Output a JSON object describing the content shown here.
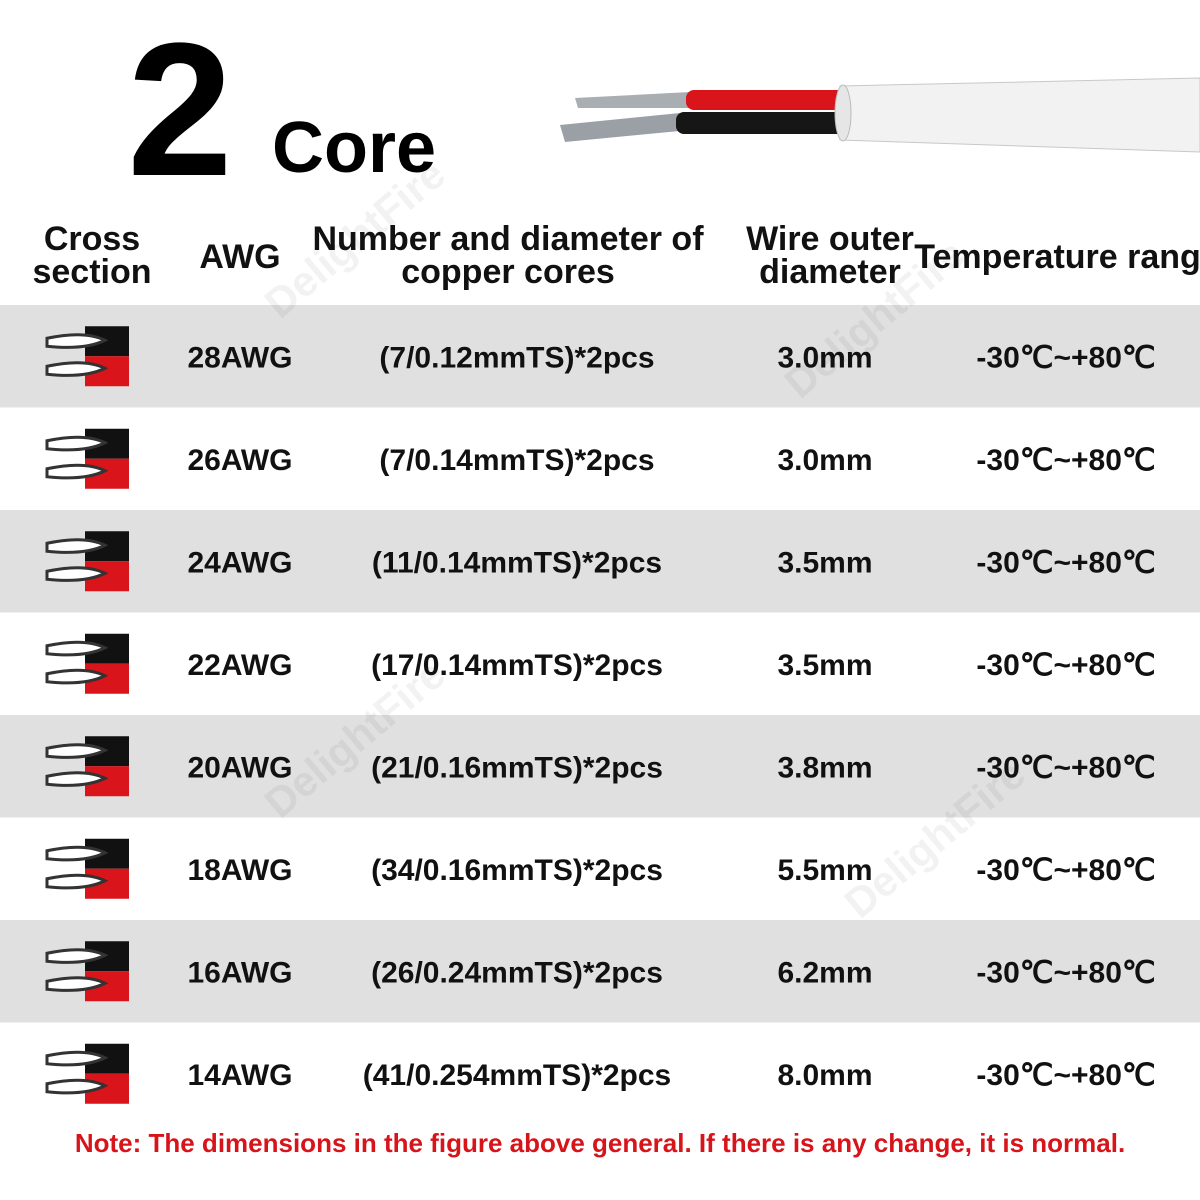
{
  "header": {
    "number": "2",
    "word": "Core"
  },
  "watermark": "DelightFire",
  "table": {
    "columns": [
      "Cross section",
      "AWG",
      "Number and diameter of copper cores",
      "Wire outer diameter",
      "Temperature range"
    ],
    "rows": [
      [
        "28AWG",
        "(7/0.12mmTS)*2pcs",
        "3.0mm",
        "-30℃~+80℃"
      ],
      [
        "26AWG",
        "(7/0.14mmTS)*2pcs",
        "3.0mm",
        "-30℃~+80℃"
      ],
      [
        "24AWG",
        "(11/0.14mmTS)*2pcs",
        "3.5mm",
        "-30℃~+80℃"
      ],
      [
        "22AWG",
        "(17/0.14mmTS)*2pcs",
        "3.5mm",
        "-30℃~+80℃"
      ],
      [
        "20AWG",
        "(21/0.16mmTS)*2pcs",
        "3.8mm",
        "-30℃~+80℃"
      ],
      [
        "18AWG",
        "(34/0.16mmTS)*2pcs",
        "5.5mm",
        "-30℃~+80℃"
      ],
      [
        "16AWG",
        "(26/0.24mmTS)*2pcs",
        "6.2mm",
        "-30℃~+80℃"
      ],
      [
        "14AWG",
        "(41/0.254mmTS)*2pcs",
        "8.0mm",
        "-30℃~+80℃"
      ]
    ]
  },
  "note": "Note: The dimensions in the figure above general. If there is any change, it is normal."
}
